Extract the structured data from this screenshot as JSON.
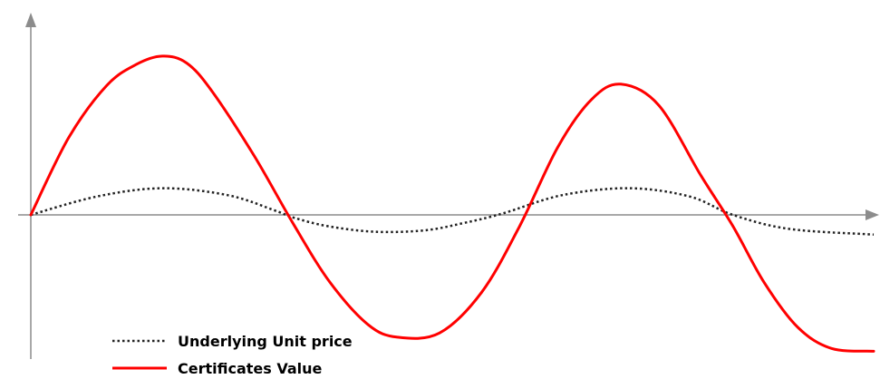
{
  "chart_data": {
    "type": "line",
    "title": "",
    "xlabel": "",
    "ylabel": "",
    "xlim": [
      0,
      1
    ],
    "ylim": [
      -1.25,
      1.25
    ],
    "grid": false,
    "legend_position": "bottom-left",
    "series": [
      {
        "name": "Underlying Unit price",
        "style": "dotted",
        "color": "#222222",
        "x": [
          0,
          0.078,
          0.156,
          0.234,
          0.29,
          0.312,
          0.352,
          0.408,
          0.467,
          0.512,
          0.56,
          0.63,
          0.71,
          0.782,
          0.833,
          0.9,
          1.0
        ],
        "y": [
          0,
          0.13,
          0.19,
          0.14,
          0.03,
          -0.02,
          -0.08,
          -0.12,
          -0.11,
          -0.06,
          0.01,
          0.14,
          0.19,
          0.13,
          0.0,
          -0.1,
          -0.14
        ]
      },
      {
        "name": "Certificates Value",
        "style": "solid",
        "color": "#ff0000",
        "x": [
          0,
          0.045,
          0.09,
          0.125,
          0.156,
          0.185,
          0.215,
          0.265,
          0.312,
          0.355,
          0.4,
          0.435,
          0.485,
          0.535,
          0.58,
          0.625,
          0.665,
          0.7,
          0.745,
          0.795,
          0.833,
          0.87,
          0.91,
          0.95,
          1.0
        ],
        "y": [
          0,
          0.55,
          0.92,
          1.07,
          1.13,
          1.08,
          0.88,
          0.42,
          -0.07,
          -0.48,
          -0.78,
          -0.87,
          -0.84,
          -0.55,
          -0.08,
          0.48,
          0.82,
          0.93,
          0.78,
          0.28,
          -0.08,
          -0.48,
          -0.8,
          -0.95,
          -0.97
        ]
      }
    ]
  },
  "colors": {
    "axis": "#8c8c8c",
    "underlying_line": "#222222",
    "certificates_line": "#ff0000"
  }
}
